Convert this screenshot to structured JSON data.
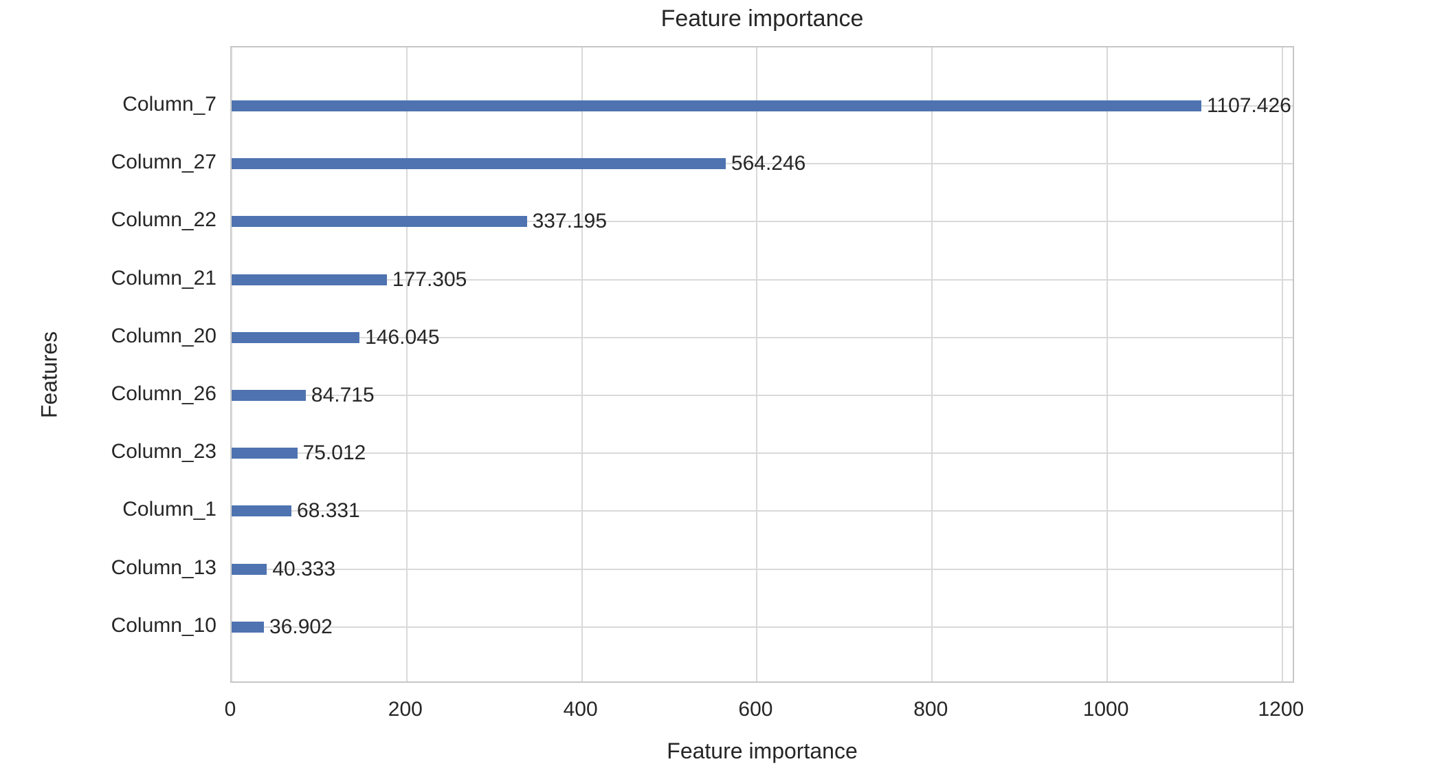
{
  "chart_data": {
    "type": "bar",
    "orientation": "horizontal",
    "title": "Feature importance",
    "xlabel": "Feature importance",
    "ylabel": "Features",
    "categories": [
      "Column_7",
      "Column_27",
      "Column_22",
      "Column_21",
      "Column_20",
      "Column_26",
      "Column_23",
      "Column_1",
      "Column_13",
      "Column_10"
    ],
    "values": [
      1107.426,
      564.246,
      337.195,
      177.305,
      146.045,
      84.715,
      75.012,
      68.331,
      40.333,
      36.902
    ],
    "value_labels": [
      "1107.426",
      "564.246",
      "337.195",
      "177.305",
      "146.045",
      "84.715",
      "75.012",
      "68.331",
      "40.333",
      "36.902"
    ],
    "x_ticks": [
      "0",
      "200",
      "400",
      "600",
      "800",
      "1000",
      "1200"
    ],
    "xlim": [
      0,
      1215
    ],
    "grid": true,
    "legend": "none",
    "bar_color": "#4e73b0",
    "grid_color": "#d9d9d9",
    "border_color": "#c6c6c6",
    "text_color": "#262626",
    "background_color": "#ffffff"
  }
}
